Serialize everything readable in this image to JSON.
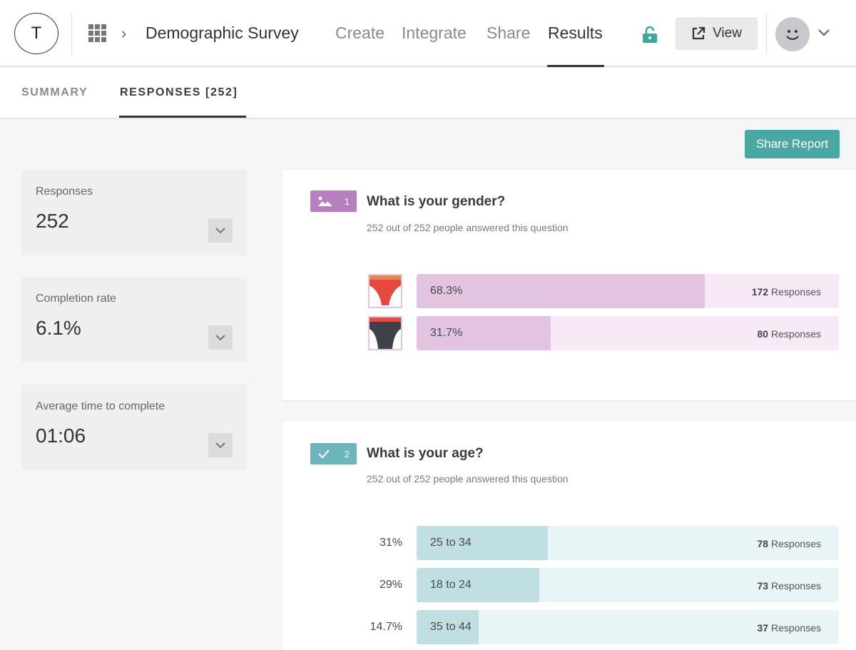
{
  "header": {
    "logo_letter": "T",
    "title": "Demographic Survey",
    "nav": [
      "Create",
      "Integrate",
      "Share",
      "Results"
    ],
    "active_nav": "Results",
    "view_label": "View"
  },
  "tabs": {
    "summary": "SUMMARY",
    "responses": "RESPONSES [252]"
  },
  "share_report": "Share Report",
  "stats": [
    {
      "label": "Responses",
      "value": "252"
    },
    {
      "label": "Completion rate",
      "value": "6.1%"
    },
    {
      "label": "Average time to complete",
      "value": "01:06"
    }
  ],
  "questions": [
    {
      "number": "1",
      "title": "What is your gender?",
      "subtitle": "252 out of 252 people answered this question",
      "type_icon": "image-icon",
      "color": "#b77fc0",
      "answers": [
        {
          "percent": "68.3%",
          "fraction": 0.683,
          "count": "172",
          "unit": "Responses"
        },
        {
          "percent": "31.7%",
          "fraction": 0.317,
          "count": "80",
          "unit": "Responses"
        }
      ]
    },
    {
      "number": "2",
      "title": "What is your age?",
      "subtitle": "252 out of 252 people answered this question",
      "type_icon": "checkmark-icon",
      "color": "#6bb5bd",
      "answers": [
        {
          "percent": "31%",
          "label": "25 to 34",
          "fraction": 0.31,
          "count": "78",
          "unit": "Responses"
        },
        {
          "percent": "29%",
          "label": "18 to 24",
          "fraction": 0.29,
          "count": "73",
          "unit": "Responses"
        },
        {
          "percent": "14.7%",
          "label": "35 to 44",
          "fraction": 0.147,
          "count": "37",
          "unit": "Responses"
        }
      ]
    }
  ]
}
